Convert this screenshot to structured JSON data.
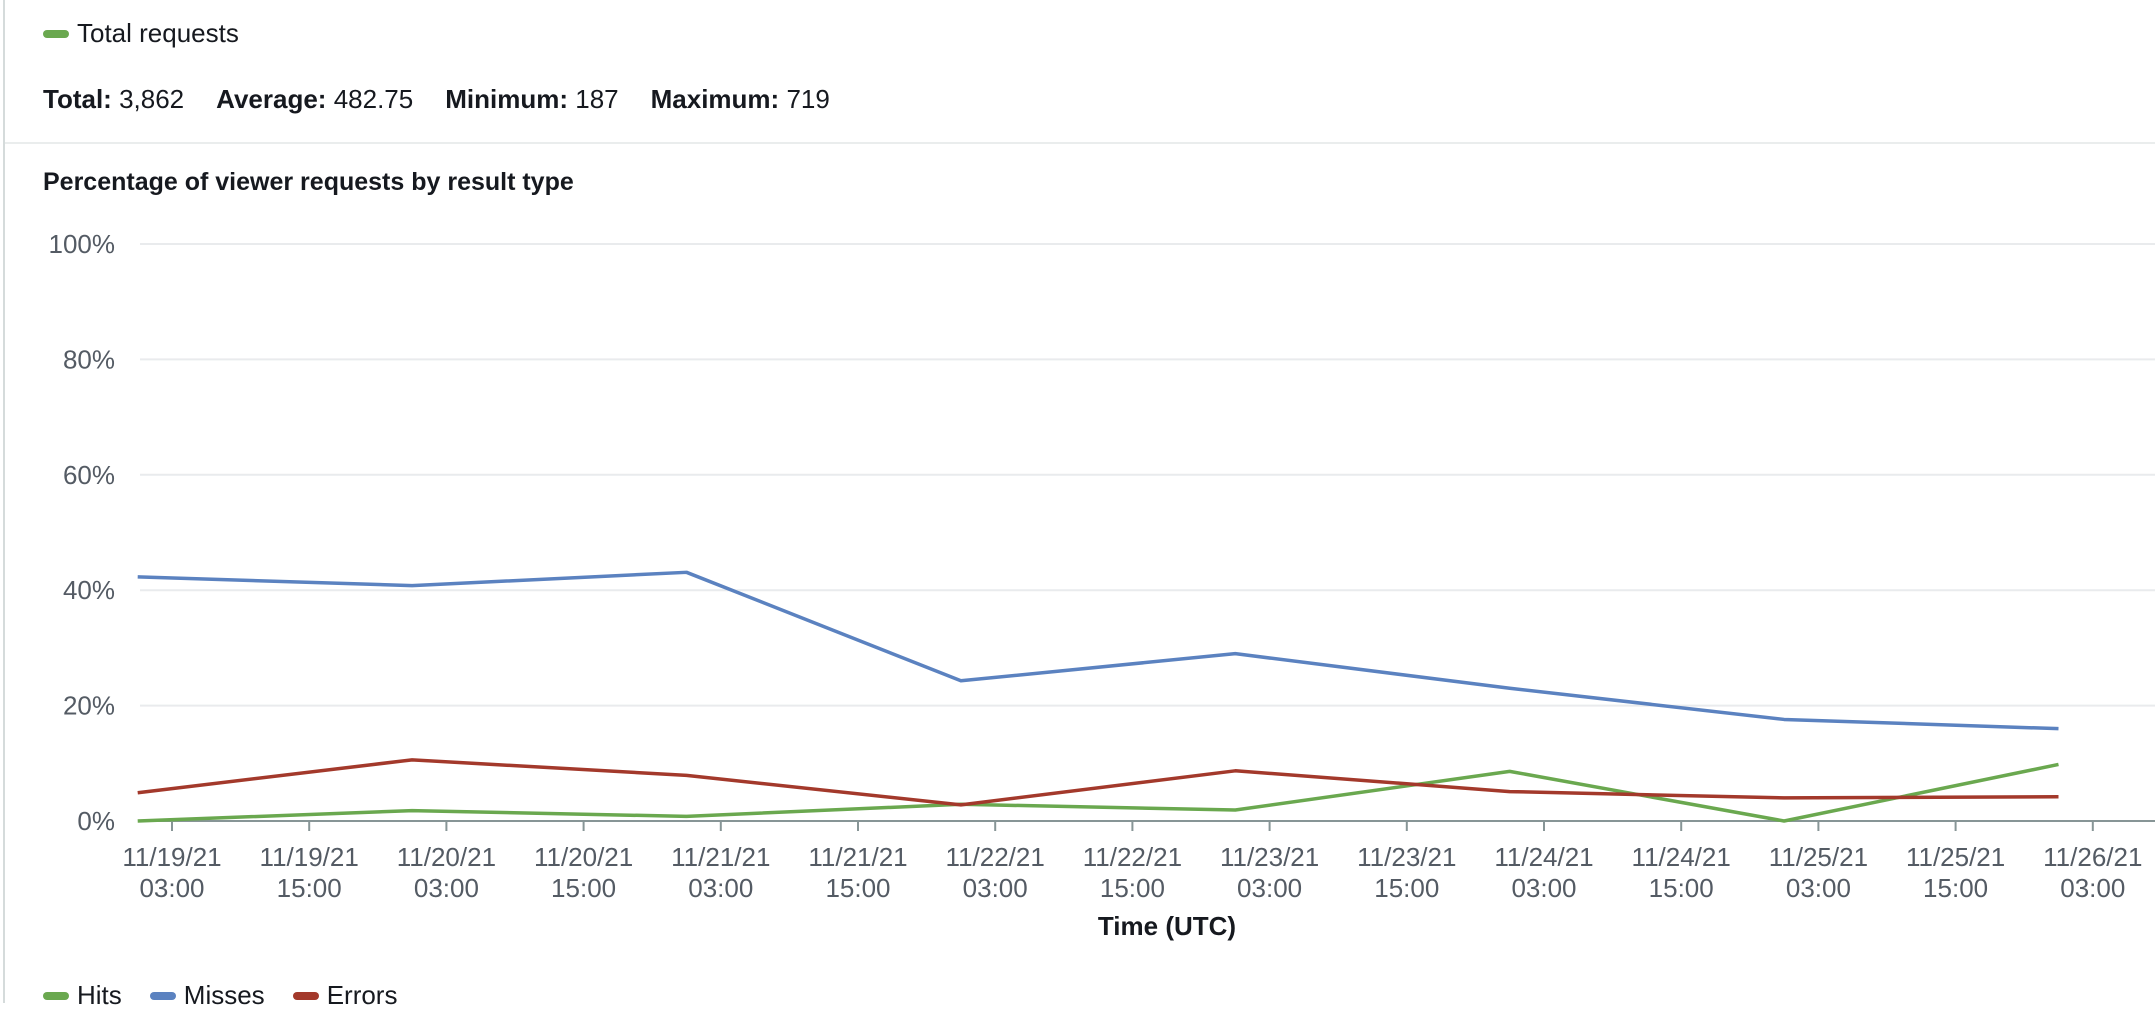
{
  "summary": {
    "legend_label": "Total requests",
    "legend_color": "#6aa84f",
    "total_label": "Total:",
    "total_value": "3,862",
    "average_label": "Average:",
    "average_value": "482.75",
    "minimum_label": "Minimum:",
    "minimum_value": "187",
    "maximum_label": "Maximum:",
    "maximum_value": "719"
  },
  "chart_data": {
    "type": "line",
    "title": "Percentage of viewer requests by result type",
    "xlabel": "Time (UTC)",
    "ylabel": "",
    "ylim": [
      0,
      100
    ],
    "y_ticks": [
      "0%",
      "20%",
      "40%",
      "60%",
      "80%",
      "100%"
    ],
    "x_ticks": [
      [
        "11/19/21",
        "03:00"
      ],
      [
        "11/19/21",
        "15:00"
      ],
      [
        "11/20/21",
        "03:00"
      ],
      [
        "11/20/21",
        "15:00"
      ],
      [
        "11/21/21",
        "03:00"
      ],
      [
        "11/21/21",
        "15:00"
      ],
      [
        "11/22/21",
        "03:00"
      ],
      [
        "11/22/21",
        "15:00"
      ],
      [
        "11/23/21",
        "03:00"
      ],
      [
        "11/23/21",
        "15:00"
      ],
      [
        "11/24/21",
        "03:00"
      ],
      [
        "11/24/21",
        "15:00"
      ],
      [
        "11/25/21",
        "03:00"
      ],
      [
        "11/25/21",
        "15:00"
      ],
      [
        "11/26/21",
        "03:00"
      ]
    ],
    "x": [
      "11/19/21 00:00",
      "11/20/21 00:00",
      "11/21/21 00:00",
      "11/22/21 00:00",
      "11/23/21 00:00",
      "11/24/21 00:00",
      "11/25/21 00:00",
      "11/26/21 00:00"
    ],
    "grid": true,
    "legend_position": "bottom-left",
    "series": [
      {
        "name": "Hits",
        "color": "#6aa84f",
        "values": [
          0,
          1.8,
          0.8,
          2.9,
          1.9,
          8.6,
          0,
          9.8
        ]
      },
      {
        "name": "Misses",
        "color": "#5b82c0",
        "values": [
          42.3,
          40.8,
          43.1,
          24.3,
          29,
          23,
          17.6,
          16
        ]
      },
      {
        "name": "Errors",
        "color": "#a3392b",
        "values": [
          4.9,
          10.6,
          7.9,
          2.8,
          8.7,
          5.1,
          4,
          4.2
        ]
      }
    ]
  }
}
